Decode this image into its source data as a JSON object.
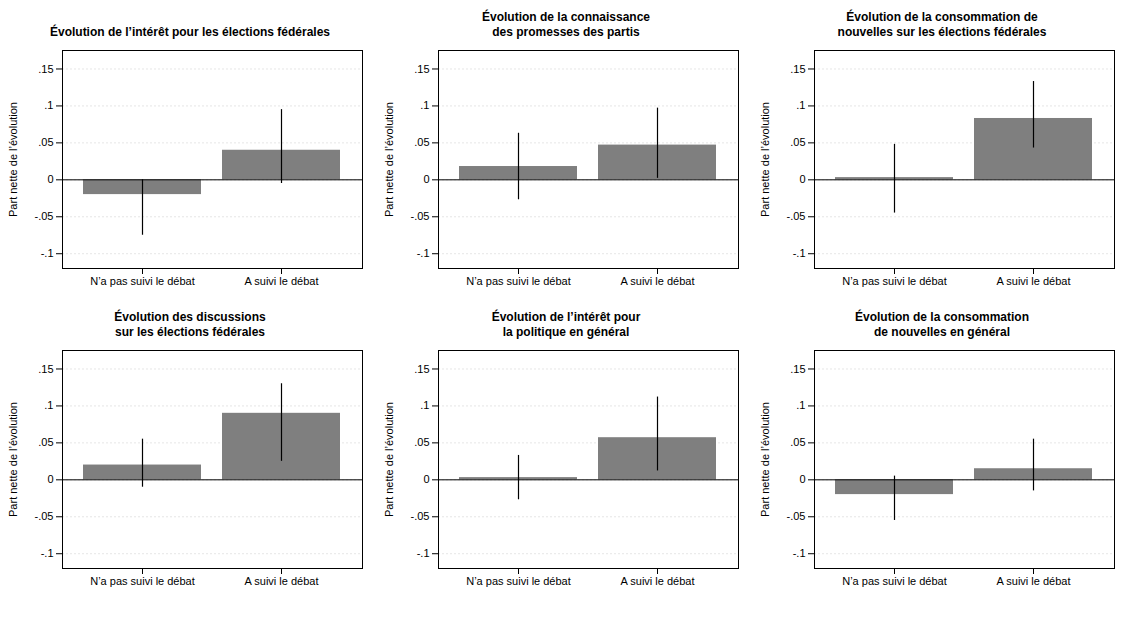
{
  "chart_data": [
    {
      "type": "bar",
      "title": "Évolution de l’intérêt pour les élections fédérales",
      "categories": [
        "N’a pas suivi le débat",
        "A suivi le débat"
      ],
      "values": [
        -0.02,
        0.04
      ],
      "error_low": [
        0.055,
        0.045
      ],
      "error_high": [
        0.02,
        0.055
      ],
      "ylabel": "Part nette de l’évolution",
      "ylim": [
        -0.12,
        0.175
      ],
      "yticks": [
        {
          "value": -0.1,
          "label": "-.1"
        },
        {
          "value": -0.05,
          "label": "-.05"
        },
        0,
        {
          "value": 0.05,
          "label": ".05"
        },
        {
          "value": 0.1,
          "label": ".1"
        },
        {
          "value": 0.15,
          "label": ".15"
        }
      ],
      "grid": true,
      "color": "#7f7f7f"
    },
    {
      "type": "bar",
      "title": "Évolution de la connaissance\ndes promesses des partis",
      "categories": [
        "N’a pas suivi le débat",
        "A suivi le débat"
      ],
      "values": [
        0.018,
        0.047
      ],
      "error_low": [
        0.045,
        0.045
      ],
      "error_high": [
        0.045,
        0.05
      ],
      "ylabel": "Part nette de l’évolution",
      "ylim": [
        -0.12,
        0.175
      ],
      "yticks": [
        {
          "value": -0.1,
          "label": "-.1"
        },
        {
          "value": -0.05,
          "label": "-.05"
        },
        0,
        {
          "value": 0.05,
          "label": ".05"
        },
        {
          "value": 0.1,
          "label": ".1"
        },
        {
          "value": 0.15,
          "label": ".15"
        }
      ],
      "grid": true,
      "color": "#7f7f7f"
    },
    {
      "type": "bar",
      "title": "Évolution de la consommation de\nnouvelles sur les élections fédérales",
      "categories": [
        "N’a pas suivi le débat",
        "A suivi le débat"
      ],
      "values": [
        0.003,
        0.083
      ],
      "error_low": [
        0.048,
        0.04
      ],
      "error_high": [
        0.045,
        0.05
      ],
      "ylabel": "Part nette de l’évolution",
      "ylim": [
        -0.12,
        0.175
      ],
      "yticks": [
        {
          "value": -0.1,
          "label": "-.1"
        },
        {
          "value": -0.05,
          "label": "-.05"
        },
        0,
        {
          "value": 0.05,
          "label": ".05"
        },
        {
          "value": 0.1,
          "label": ".1"
        },
        {
          "value": 0.15,
          "label": ".15"
        }
      ],
      "grid": true,
      "color": "#7f7f7f"
    },
    {
      "type": "bar",
      "title": "Évolution des discussions\nsur les élections fédérales",
      "categories": [
        "N’a pas suivi le débat",
        "A suivi le débat"
      ],
      "values": [
        0.02,
        0.09
      ],
      "error_low": [
        0.03,
        0.065
      ],
      "error_high": [
        0.035,
        0.04
      ],
      "ylabel": "Part nette de l’évolution",
      "ylim": [
        -0.12,
        0.175
      ],
      "yticks": [
        {
          "value": -0.1,
          "label": "-.1"
        },
        {
          "value": -0.05,
          "label": "-.05"
        },
        0,
        {
          "value": 0.05,
          "label": ".05"
        },
        {
          "value": 0.1,
          "label": ".1"
        },
        {
          "value": 0.15,
          "label": ".15"
        }
      ],
      "grid": true,
      "color": "#7f7f7f"
    },
    {
      "type": "bar",
      "title": "Évolution de l’intérêt pour\nla politique en général",
      "categories": [
        "N’a pas suivi le débat",
        "A suivi le débat"
      ],
      "values": [
        0.003,
        0.057
      ],
      "error_low": [
        0.03,
        0.045
      ],
      "error_high": [
        0.03,
        0.055
      ],
      "ylabel": "Part nette de l’évolution",
      "ylim": [
        -0.12,
        0.175
      ],
      "yticks": [
        {
          "value": -0.1,
          "label": "-.1"
        },
        {
          "value": -0.05,
          "label": "-.05"
        },
        0,
        {
          "value": 0.05,
          "label": ".05"
        },
        {
          "value": 0.1,
          "label": ".1"
        },
        {
          "value": 0.15,
          "label": ".15"
        }
      ],
      "grid": true,
      "color": "#7f7f7f"
    },
    {
      "type": "bar",
      "title": "Évolution de la consommation\nde nouvelles en général",
      "categories": [
        "N’a pas suivi le débat",
        "A suivi le débat"
      ],
      "values": [
        -0.02,
        0.015
      ],
      "error_low": [
        0.035,
        0.03
      ],
      "error_high": [
        0.025,
        0.04
      ],
      "ylabel": "Part nette de l’évolution",
      "ylim": [
        -0.12,
        0.175
      ],
      "yticks": [
        {
          "value": -0.1,
          "label": "-.1"
        },
        {
          "value": -0.05,
          "label": "-.05"
        },
        0,
        {
          "value": 0.05,
          "label": ".05"
        },
        {
          "value": 0.1,
          "label": ".1"
        },
        {
          "value": 0.15,
          "label": ".15"
        }
      ],
      "grid": true,
      "color": "#7f7f7f"
    }
  ]
}
